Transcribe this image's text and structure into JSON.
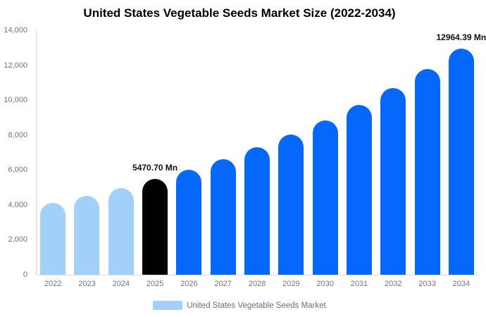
{
  "header": {
    "title": "United States Vegetable Seeds Market Size (2022-2034)"
  },
  "legend": {
    "label": "United States Vegetable Seeds Market",
    "swatch_color": "#a3cffb"
  },
  "colors": {
    "historical_bar": "#a3cffb",
    "base_year_bar": "#000000",
    "forecast_bar": "#0567fb",
    "axis_text": "#757575",
    "legend_text": "#6e6e6e",
    "axis_line": "#d4d4d4"
  },
  "chart_data": {
    "type": "bar",
    "title": "United States Vegetable Seeds Market Size (2022-2034)",
    "xlabel": "",
    "ylabel": "",
    "unit": "Mn",
    "categories": [
      "2022",
      "2023",
      "2024",
      "2025",
      "2026",
      "2027",
      "2028",
      "2029",
      "2030",
      "2031",
      "2032",
      "2033",
      "2034"
    ],
    "values": [
      4103,
      4516,
      4970,
      5470.7,
      6021,
      6627,
      7293,
      8027,
      8834,
      9723,
      10701,
      11777,
      12964.39
    ],
    "point_colors": [
      "#a3cffb",
      "#a3cffb",
      "#a3cffb",
      "#000000",
      "#0567fb",
      "#0567fb",
      "#0567fb",
      "#0567fb",
      "#0567fb",
      "#0567fb",
      "#0567fb",
      "#0567fb",
      "#0567fb"
    ],
    "y_ticks": [
      "0",
      "2,000",
      "4,000",
      "6,000",
      "8,000",
      "10,000",
      "12,000",
      "14,000"
    ],
    "ylim": [
      0,
      14000
    ],
    "grid": false,
    "legend_position": "bottom",
    "data_labels": [
      {
        "category": "2025",
        "text": "5470.70 Mn"
      },
      {
        "category": "2034",
        "text": "12964.39 Mn"
      }
    ]
  }
}
